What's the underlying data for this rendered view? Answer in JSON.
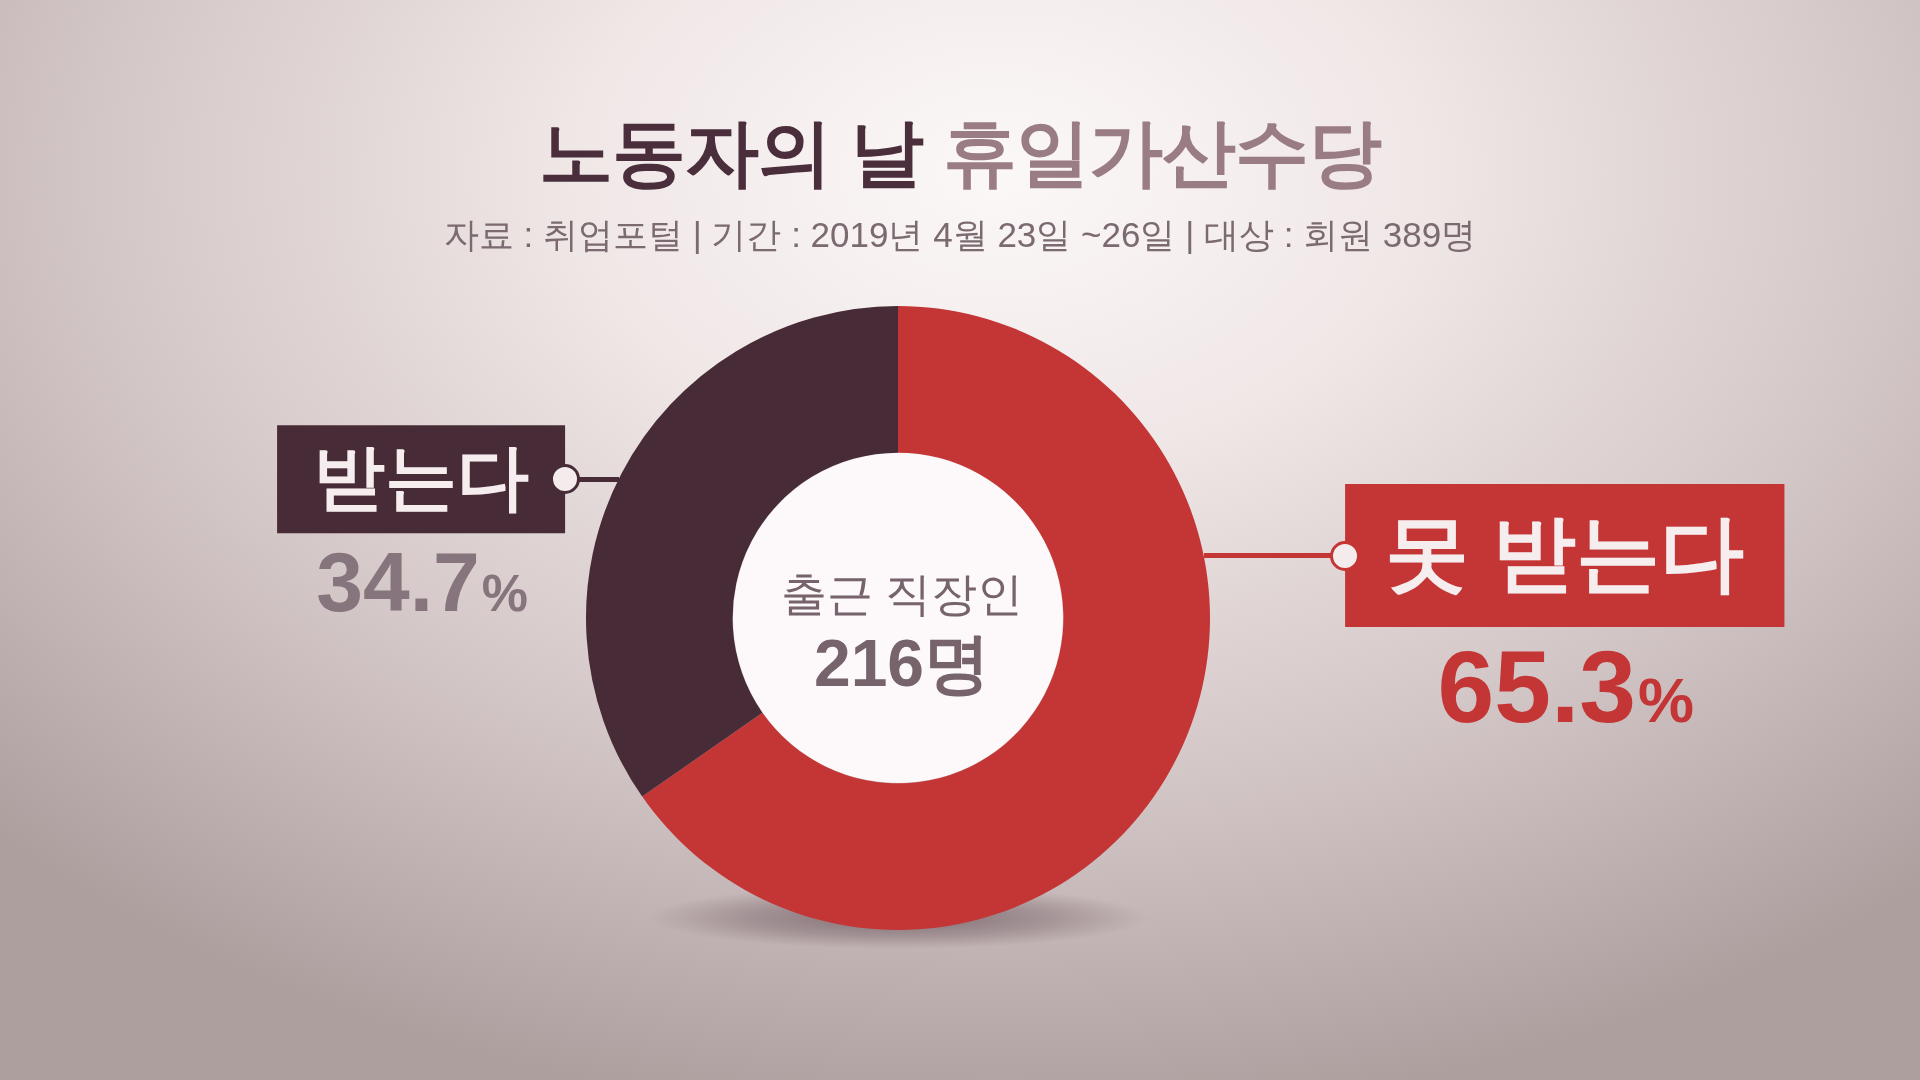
{
  "chart_data": {
    "type": "donut",
    "title": "노동자의 날 휴일가산수당",
    "subtitle": "자료 : 취업포털 | 기간 : 2019년 4월 23일 ~26일 | 대상 : 회원 389명",
    "categories": [
      "못 받는다",
      "받는다"
    ],
    "values": [
      65.3,
      34.7
    ],
    "colors": [
      "#c43535",
      "#472b37"
    ],
    "value_labels": [
      "65.3%",
      "34.7%"
    ],
    "annotations": [
      "출근 직장인",
      "216명"
    ]
  }
}
